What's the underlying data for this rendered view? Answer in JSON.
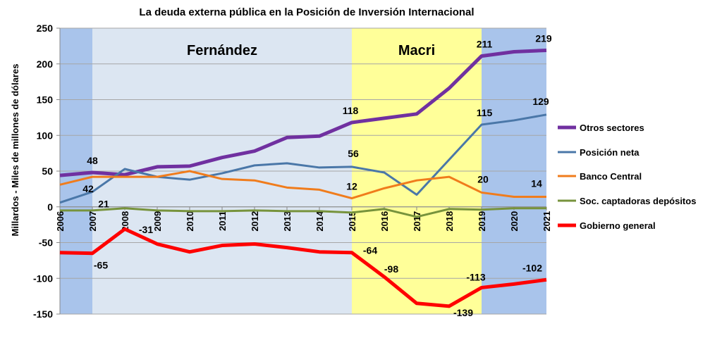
{
  "chart_data": {
    "type": "line",
    "title": "La deuda externa pública en la Posición de Inversión Internacional",
    "ylabel": "Millardos - Miles de millones de dólares",
    "xlabel": "",
    "ylim": [
      -150,
      250
    ],
    "yticks": [
      -150,
      -100,
      -50,
      0,
      50,
      100,
      150,
      200,
      250
    ],
    "grid": true,
    "legend_position": "right",
    "x": [
      "2006",
      "2007",
      "2008",
      "2009",
      "2010",
      "2011",
      "2012",
      "2013",
      "2014",
      "2015",
      "2016",
      "2017",
      "2018",
      "2019",
      "2020",
      "2021"
    ],
    "periods": [
      {
        "label": "",
        "from": "2006",
        "to": "2007",
        "color": "#a9c4eb"
      },
      {
        "label": "Fernández",
        "from": "2007",
        "to": "2015",
        "color": "#dce6f2"
      },
      {
        "label": "Macri",
        "from": "2015",
        "to": "2019",
        "color": "#ffff99"
      },
      {
        "label": "",
        "from": "2019",
        "to": "2021",
        "color": "#a9c4eb"
      }
    ],
    "series": [
      {
        "name": "Otros sectores",
        "color": "#7030a0",
        "width": 5,
        "values": [
          44,
          48,
          45,
          56,
          57,
          69,
          78,
          97,
          99,
          118,
          124,
          130,
          166,
          211,
          217,
          219
        ]
      },
      {
        "name": "Posición neta",
        "color": "#4a77a8",
        "width": 3,
        "values": [
          6,
          21,
          53,
          42,
          38,
          47,
          58,
          61,
          55,
          56,
          48,
          17,
          66,
          115,
          121,
          129
        ]
      },
      {
        "name": "Banco Central",
        "color": "#f07c1c",
        "width": 3,
        "values": [
          31,
          42,
          42,
          42,
          50,
          39,
          37,
          27,
          24,
          12,
          26,
          37,
          42,
          20,
          14,
          14
        ]
      },
      {
        "name": "Soc. captadoras depósitos",
        "color": "#77933c",
        "width": 3,
        "values": [
          -5,
          -5,
          -2,
          -5,
          -6,
          -6,
          -5,
          -6,
          -6,
          -8,
          -3,
          -14,
          -3,
          -4,
          -2,
          -2
        ]
      },
      {
        "name": "Gobierno general",
        "color": "#ff0000",
        "width": 5,
        "values": [
          -64,
          -65,
          -31,
          -52,
          -63,
          -54,
          -52,
          -57,
          -63,
          -64,
          -98,
          -135,
          -139,
          -113,
          -108,
          -102
        ]
      }
    ],
    "data_labels": [
      {
        "text": "48",
        "x": "2007",
        "y": 48,
        "dx": 0,
        "dy": -12
      },
      {
        "text": "42",
        "x": "2007",
        "y": 42,
        "dx": -6,
        "dy": 22
      },
      {
        "text": "21",
        "x": "2007",
        "y": 21,
        "dx": 16,
        "dy": 22
      },
      {
        "text": "-31",
        "x": "2008",
        "y": -31,
        "dx": 30,
        "dy": 6
      },
      {
        "text": "-65",
        "x": "2007",
        "y": -65,
        "dx": 12,
        "dy": 22
      },
      {
        "text": "118",
        "x": "2015",
        "y": 118,
        "dx": -2,
        "dy": -12
      },
      {
        "text": "56",
        "x": "2015",
        "y": 56,
        "dx": 2,
        "dy": -14
      },
      {
        "text": "12",
        "x": "2015",
        "y": 12,
        "dx": 0,
        "dy": -12
      },
      {
        "text": "-64",
        "x": "2015",
        "y": -64,
        "dx": 26,
        "dy": 2
      },
      {
        "text": "-98",
        "x": "2016",
        "y": -98,
        "dx": 10,
        "dy": -6
      },
      {
        "text": "211",
        "x": "2019",
        "y": 211,
        "dx": 4,
        "dy": -12
      },
      {
        "text": "115",
        "x": "2019",
        "y": 115,
        "dx": 4,
        "dy": -12
      },
      {
        "text": "20",
        "x": "2019",
        "y": 20,
        "dx": 2,
        "dy": -14
      },
      {
        "text": "-113",
        "x": "2019",
        "y": -113,
        "dx": -8,
        "dy": -10
      },
      {
        "text": "-139",
        "x": "2018",
        "y": -139,
        "dx": 20,
        "dy": 14
      },
      {
        "text": "219",
        "x": "2021",
        "y": 219,
        "dx": -4,
        "dy": -12
      },
      {
        "text": "129",
        "x": "2021",
        "y": 129,
        "dx": -8,
        "dy": -14
      },
      {
        "text": "14",
        "x": "2021",
        "y": 14,
        "dx": -14,
        "dy": -14
      },
      {
        "text": "-102",
        "x": "2021",
        "y": -102,
        "dx": -20,
        "dy": -12
      }
    ]
  }
}
